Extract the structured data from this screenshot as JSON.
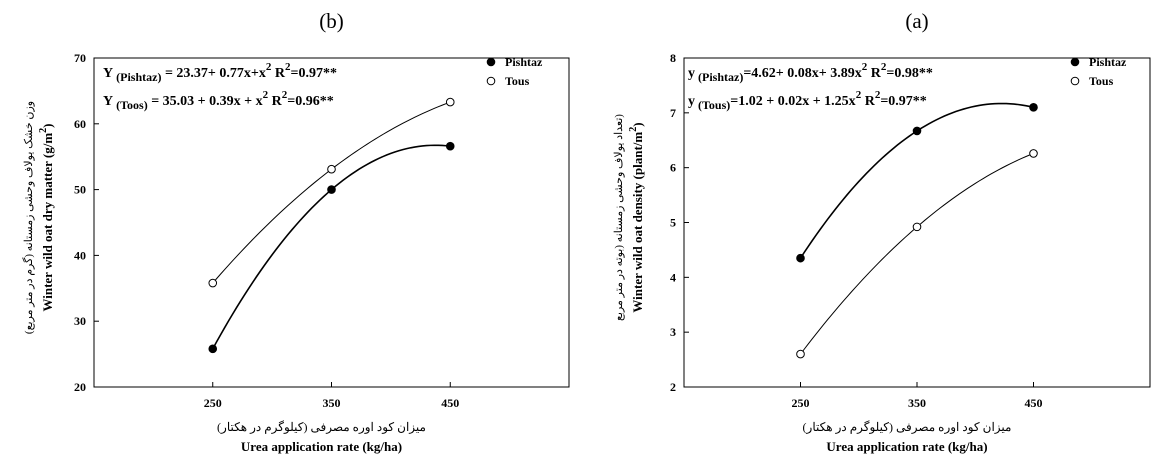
{
  "chart_data": [
    {
      "panel_label": "(b)",
      "type": "scatter",
      "ylabel": "Winter wild oat dry matter (g/m",
      "ylabel_sup": "2",
      "ylabel_close": ")",
      "ylabel_fa": "وزن خشک یولاف وحشی زمستانه (گرم در متر مربع)",
      "xlabel": "Urea application rate (kg/ha)",
      "xlabel_fa": "میزان کود اوره مصرفی (کیلوگرم در هکتار)",
      "xlim": [
        150,
        550
      ],
      "ylim": [
        20,
        70
      ],
      "xticks": [
        250,
        350,
        450
      ],
      "yticks": [
        20,
        30,
        40,
        50,
        60,
        70
      ],
      "grid": false,
      "legend_position": "top-right",
      "series": [
        {
          "name": "Pishtaz",
          "marker": "filled",
          "x": [
            250,
            350,
            450
          ],
          "y": [
            25.8,
            50.0,
            56.6
          ]
        },
        {
          "name": "Tous",
          "marker": "open",
          "x": [
            250,
            350,
            450
          ],
          "y": [
            35.8,
            53.1,
            63.3
          ]
        }
      ],
      "equations": [
        {
          "y_label": "Y",
          "sub": "(Pishtaz)",
          "rest": " = 23.37+ 0.77x+x",
          "sup": "2",
          "r2_label": "R",
          "r2_sup": "2",
          "r2_value": "=0.97**"
        },
        {
          "y_label": "Y",
          "sub": "(Toos)",
          "rest": " = 35.03 + 0.39x + x",
          "sup": "2",
          "r2_label": "R",
          "r2_sup": "2",
          "r2_value": "=0.96**"
        }
      ]
    },
    {
      "panel_label": "(a)",
      "type": "scatter",
      "ylabel": "Winter wild oat density (plant/m",
      "ylabel_sup": "2",
      "ylabel_close": ")",
      "ylabel_fa": "(تعداد یولاف وحشی زمستانه (بوته در متر مربع",
      "xlabel": "Urea application rate (kg/ha)",
      "xlabel_fa": "میزان کود اوره مصرفی (کیلوگرم در هکتار)",
      "xlim": [
        150,
        550
      ],
      "ylim": [
        2,
        8
      ],
      "xticks": [
        250,
        350,
        450
      ],
      "yticks": [
        2,
        3,
        4,
        5,
        6,
        7,
        8
      ],
      "grid": false,
      "legend_position": "top-right",
      "series": [
        {
          "name": "Pishtaz",
          "marker": "filled",
          "x": [
            250,
            350,
            450
          ],
          "y": [
            4.35,
            6.67,
            7.1
          ]
        },
        {
          "name": "Tous",
          "marker": "open",
          "x": [
            250,
            350,
            450
          ],
          "y": [
            2.6,
            4.92,
            6.26
          ]
        }
      ],
      "equations": [
        {
          "y_label": "y",
          "sub": "(Pishtaz)",
          "rest": "=4.62+ 0.08x+ 3.89x",
          "sup": "2",
          "r2_label": "R",
          "r2_sup": "2",
          "r2_value": "=0.98**"
        },
        {
          "y_label": "y",
          "sub": "(Tous)",
          "rest": "=1.02 + 0.02x + 1.25x",
          "sup": "2",
          "r2_label": "R",
          "r2_sup": "2",
          "r2_value": "=0.97**"
        }
      ]
    }
  ]
}
